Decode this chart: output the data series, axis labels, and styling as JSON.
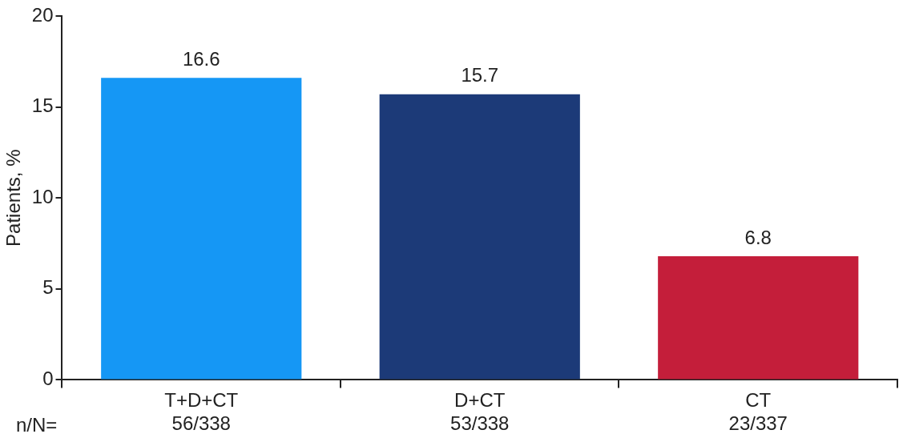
{
  "chart_data": {
    "type": "bar",
    "ylabel": "Patients, %",
    "categories": [
      "T+D+CT\n56/338",
      "D+CT\n53/338",
      "CT\n23/337"
    ],
    "values": [
      16.6,
      15.7,
      6.8
    ],
    "colors": [
      "#1597f5",
      "#1c3a78",
      "#c41e3a"
    ],
    "ylim": [
      0,
      20
    ],
    "yticks": [
      0,
      5,
      10,
      15,
      20
    ],
    "grid": false,
    "legend": false,
    "data_labels": true,
    "annotations": [
      "n/N="
    ]
  }
}
